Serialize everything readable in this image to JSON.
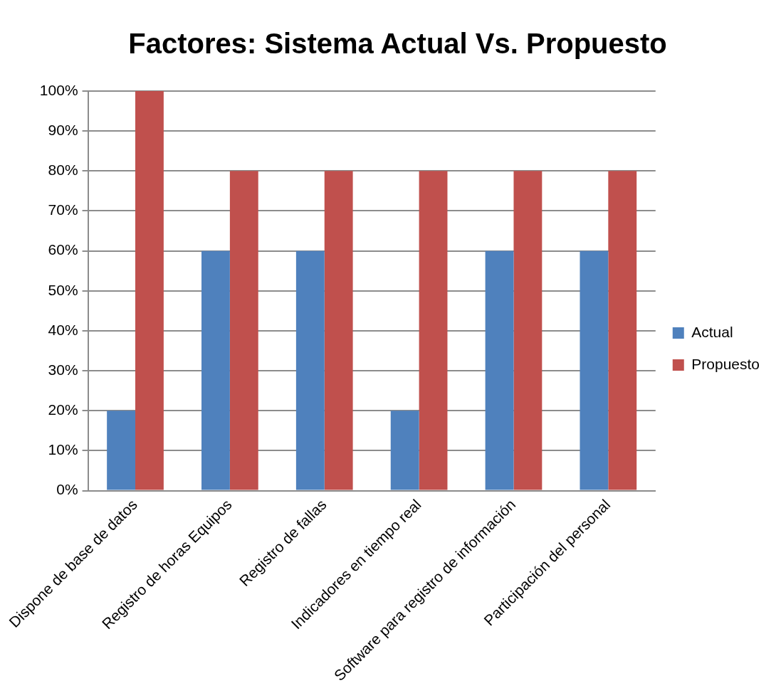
{
  "chart_data": {
    "type": "bar",
    "title": "Factores: Sistema Actual Vs. Propuesto",
    "categories": [
      "Dispone de base de datos",
      "Registro de horas Equipos",
      "Registro de fallas",
      "Indicadores en tiempo real",
      "Software para registro de información",
      "Participación del personal"
    ],
    "series": [
      {
        "name": "Actual",
        "color": "#4f81bd",
        "values": [
          20,
          60,
          60,
          20,
          60,
          60
        ]
      },
      {
        "name": "Propuesto",
        "color": "#c0504d",
        "values": [
          100,
          80,
          80,
          80,
          80,
          80
        ]
      }
    ],
    "ylim": [
      0,
      100
    ],
    "yticks": [
      {
        "value": 0,
        "label": "0%"
      },
      {
        "value": 10,
        "label": "10%"
      },
      {
        "value": 20,
        "label": "20%"
      },
      {
        "value": 30,
        "label": "30%"
      },
      {
        "value": 40,
        "label": "40%"
      },
      {
        "value": 50,
        "label": "50%"
      },
      {
        "value": 60,
        "label": "60%"
      },
      {
        "value": 70,
        "label": "70%"
      },
      {
        "value": 80,
        "label": "80%"
      },
      {
        "value": 90,
        "label": "90%"
      },
      {
        "value": 100,
        "label": "100%"
      }
    ],
    "grid": "y",
    "legend": "right"
  }
}
